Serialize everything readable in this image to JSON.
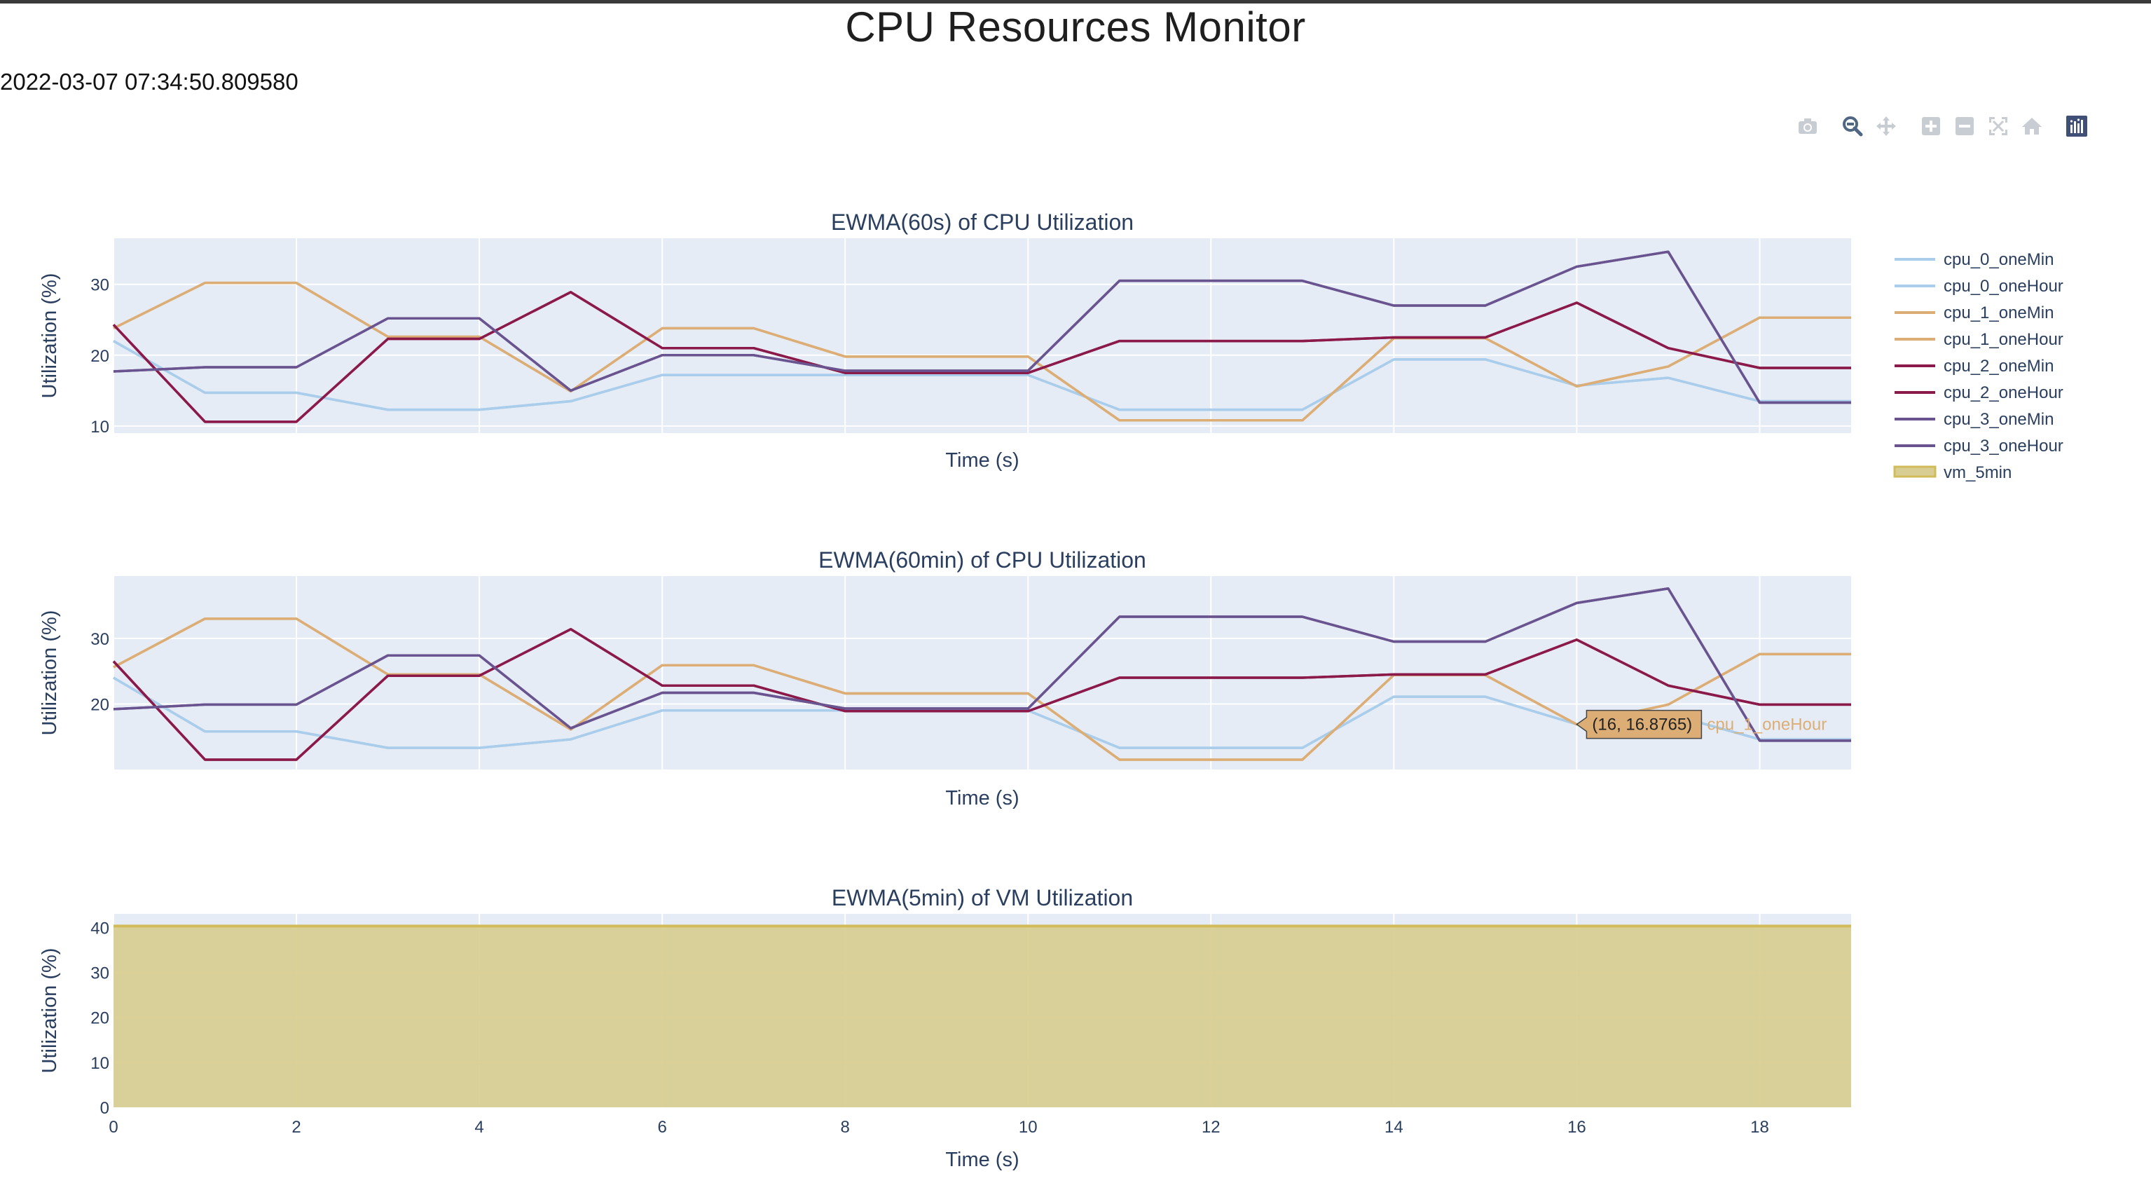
{
  "page": {
    "title": "CPU Resources Monitor",
    "timestamp": "2022-03-07 07:34:50.809580"
  },
  "modebar": {
    "buttons": [
      {
        "name": "camera-icon",
        "label": "Download plot as a png"
      },
      {
        "name": "zoom-icon",
        "label": "Zoom",
        "active": true
      },
      {
        "name": "pan-icon",
        "label": "Pan"
      },
      {
        "name": "zoom-in-icon",
        "label": "Zoom in"
      },
      {
        "name": "zoom-out-icon",
        "label": "Zoom out"
      },
      {
        "name": "autoscale-icon",
        "label": "Autoscale"
      },
      {
        "name": "home-icon",
        "label": "Reset axes"
      },
      {
        "name": "plotly-logo-icon",
        "label": "Produced with Plotly"
      }
    ]
  },
  "colors": {
    "cpu_0": "#a9cdea",
    "cpu_1": "#dcae76",
    "cpu_2": "#8b1a4a",
    "cpu_3": "#6a5490",
    "vm": "#d2bb5a",
    "vm_fill": "#d8cd92",
    "plot_bg": "#e5ecf6",
    "grid": "#ffffff"
  },
  "legend": {
    "entries": [
      "cpu_0_oneMin",
      "cpu_0_oneHour",
      "cpu_1_oneMin",
      "cpu_1_oneHour",
      "cpu_2_oneMin",
      "cpu_2_oneHour",
      "cpu_3_oneMin",
      "cpu_3_oneHour",
      "vm_5min"
    ]
  },
  "hover": {
    "text": "(16, 16.8765)",
    "series": "cpu_1_oneHour",
    "x": 16,
    "y": 16.8765
  },
  "chart_data": [
    {
      "type": "line",
      "title": "EWMA(60s) of CPU Utilization",
      "xlabel": "Time (s)",
      "ylabel": "Utilization (%)",
      "xlim": [
        0,
        19
      ],
      "ylim": [
        9,
        36.5
      ],
      "yticks": [
        10,
        20,
        30
      ],
      "x": [
        0,
        1,
        2,
        3,
        4,
        5,
        6,
        7,
        8,
        9,
        10,
        11,
        12,
        13,
        14,
        15,
        16,
        17,
        18,
        19
      ],
      "series": [
        {
          "name": "cpu_0_oneMin",
          "color_key": "cpu_0",
          "values": [
            22,
            14.7,
            14.7,
            12.3,
            12.3,
            13.5,
            17.2,
            17.2,
            17.2,
            17.2,
            17.2,
            12.3,
            12.3,
            12.3,
            19.4,
            19.4,
            15.7,
            16.8,
            13.5,
            13.5
          ]
        },
        {
          "name": "cpu_0_oneHour",
          "color_key": "cpu_0",
          "values": [
            22,
            14.7,
            14.7,
            12.3,
            12.3,
            13.5,
            17.2,
            17.2,
            17.2,
            17.2,
            17.2,
            12.3,
            12.3,
            12.3,
            19.4,
            19.4,
            15.7,
            16.8,
            13.5,
            13.5
          ]
        },
        {
          "name": "cpu_1_oneMin",
          "color_key": "cpu_1",
          "values": [
            23.8,
            30.2,
            30.2,
            22.6,
            22.6,
            14.9,
            23.8,
            23.8,
            19.8,
            19.8,
            19.8,
            10.8,
            10.8,
            10.8,
            22.4,
            22.4,
            15.6,
            18.4,
            25.3,
            25.3
          ]
        },
        {
          "name": "cpu_1_oneHour",
          "color_key": "cpu_1",
          "values": [
            23.8,
            30.2,
            30.2,
            22.6,
            22.6,
            14.9,
            23.8,
            23.8,
            19.8,
            19.8,
            19.8,
            10.8,
            10.8,
            10.8,
            22.4,
            22.4,
            15.6,
            18.4,
            25.3,
            25.3
          ]
        },
        {
          "name": "cpu_2_oneMin",
          "color_key": "cpu_2",
          "values": [
            24.3,
            10.6,
            10.6,
            22.3,
            22.3,
            28.9,
            21,
            21,
            17.5,
            17.5,
            17.5,
            22,
            22,
            22,
            22.5,
            22.5,
            27.4,
            21,
            18.2,
            18.2
          ]
        },
        {
          "name": "cpu_2_oneHour",
          "color_key": "cpu_2",
          "values": [
            24.3,
            10.6,
            10.6,
            22.3,
            22.3,
            28.9,
            21,
            21,
            17.5,
            17.5,
            17.5,
            22,
            22,
            22,
            22.5,
            22.5,
            27.4,
            21,
            18.2,
            18.2
          ]
        },
        {
          "name": "cpu_3_oneMin",
          "color_key": "cpu_3",
          "values": [
            17.7,
            18.3,
            18.3,
            25.2,
            25.2,
            15,
            20,
            20,
            17.8,
            17.8,
            17.8,
            30.5,
            30.5,
            30.5,
            27,
            27,
            32.5,
            34.6,
            13.3,
            13.3
          ]
        },
        {
          "name": "cpu_3_oneHour",
          "color_key": "cpu_3",
          "values": [
            17.7,
            18.3,
            18.3,
            25.2,
            25.2,
            15,
            20,
            20,
            17.8,
            17.8,
            17.8,
            30.5,
            30.5,
            30.5,
            27,
            27,
            32.5,
            34.6,
            13.3,
            13.3
          ]
        }
      ]
    },
    {
      "type": "line",
      "title": "EWMA(60min) of CPU Utilization",
      "xlabel": "Time (s)",
      "ylabel": "Utilization (%)",
      "xlim": [
        0,
        19
      ],
      "ylim": [
        10,
        39.5
      ],
      "yticks": [
        20,
        30
      ],
      "x": [
        0,
        1,
        2,
        3,
        4,
        5,
        6,
        7,
        8,
        9,
        10,
        11,
        12,
        13,
        14,
        15,
        16,
        17,
        18,
        19
      ],
      "series": [
        {
          "name": "cpu_0_oneMin",
          "color_key": "cpu_0",
          "values": [
            24,
            15.8,
            15.8,
            13.3,
            13.3,
            14.6,
            19,
            19,
            19,
            19,
            19,
            13.3,
            13.3,
            13.3,
            21.1,
            21.1,
            16.9,
            18.5,
            14.6,
            14.6
          ]
        },
        {
          "name": "cpu_0_oneHour",
          "color_key": "cpu_0",
          "values": [
            24,
            15.8,
            15.8,
            13.3,
            13.3,
            14.6,
            19,
            19,
            19,
            19,
            19,
            13.3,
            13.3,
            13.3,
            21.1,
            21.1,
            16.9,
            18.5,
            14.6,
            14.6
          ]
        },
        {
          "name": "cpu_1_oneMin",
          "color_key": "cpu_1",
          "values": [
            25.6,
            33,
            33,
            24.5,
            24.5,
            16.1,
            25.9,
            25.9,
            21.6,
            21.6,
            21.6,
            11.5,
            11.5,
            11.5,
            24.4,
            24.4,
            16.8765,
            19.9,
            27.6,
            27.6
          ]
        },
        {
          "name": "cpu_1_oneHour",
          "color_key": "cpu_1",
          "values": [
            25.6,
            33,
            33,
            24.5,
            24.5,
            16.1,
            25.9,
            25.9,
            21.6,
            21.6,
            21.6,
            11.5,
            11.5,
            11.5,
            24.4,
            24.4,
            16.8765,
            19.9,
            27.6,
            27.6
          ]
        },
        {
          "name": "cpu_2_oneMin",
          "color_key": "cpu_2",
          "values": [
            26.5,
            11.5,
            11.5,
            24.3,
            24.3,
            31.4,
            22.8,
            22.8,
            18.9,
            18.9,
            18.9,
            24,
            24,
            24,
            24.5,
            24.5,
            29.8,
            22.8,
            19.9,
            19.9
          ]
        },
        {
          "name": "cpu_2_oneHour",
          "color_key": "cpu_2",
          "values": [
            26.5,
            11.5,
            11.5,
            24.3,
            24.3,
            31.4,
            22.8,
            22.8,
            18.9,
            18.9,
            18.9,
            24,
            24,
            24,
            24.5,
            24.5,
            29.8,
            22.8,
            19.9,
            19.9
          ]
        },
        {
          "name": "cpu_3_oneMin",
          "color_key": "cpu_3",
          "values": [
            19.2,
            19.9,
            19.9,
            27.4,
            27.4,
            16.3,
            21.7,
            21.7,
            19.3,
            19.3,
            19.3,
            33.3,
            33.3,
            33.3,
            29.5,
            29.5,
            35.4,
            37.6,
            14.4,
            14.4
          ]
        },
        {
          "name": "cpu_3_oneHour",
          "color_key": "cpu_3",
          "values": [
            19.2,
            19.9,
            19.9,
            27.4,
            27.4,
            16.3,
            21.7,
            21.7,
            19.3,
            19.3,
            19.3,
            33.3,
            33.3,
            33.3,
            29.5,
            29.5,
            35.4,
            37.6,
            14.4,
            14.4
          ]
        }
      ]
    },
    {
      "type": "area",
      "title": "EWMA(5min) of VM Utilization",
      "xlabel": "Time (s)",
      "ylabel": "Utilization (%)",
      "xlim": [
        0,
        19
      ],
      "ylim": [
        0,
        43
      ],
      "yticks": [
        0,
        10,
        20,
        30,
        40
      ],
      "xticks": [
        0,
        2,
        4,
        6,
        8,
        10,
        12,
        14,
        16,
        18
      ],
      "x": [
        0,
        1,
        2,
        3,
        4,
        5,
        6,
        7,
        8,
        9,
        10,
        11,
        12,
        13,
        14,
        15,
        16,
        17,
        18,
        19
      ],
      "series": [
        {
          "name": "vm_5min",
          "color_key": "vm",
          "values": [
            40.3,
            40.3,
            40.3,
            40.3,
            40.3,
            40.3,
            40.3,
            40.3,
            40.3,
            40.3,
            40.3,
            40.3,
            40.3,
            40.3,
            40.3,
            40.3,
            40.3,
            40.3,
            40.3,
            40.3
          ]
        }
      ]
    }
  ]
}
